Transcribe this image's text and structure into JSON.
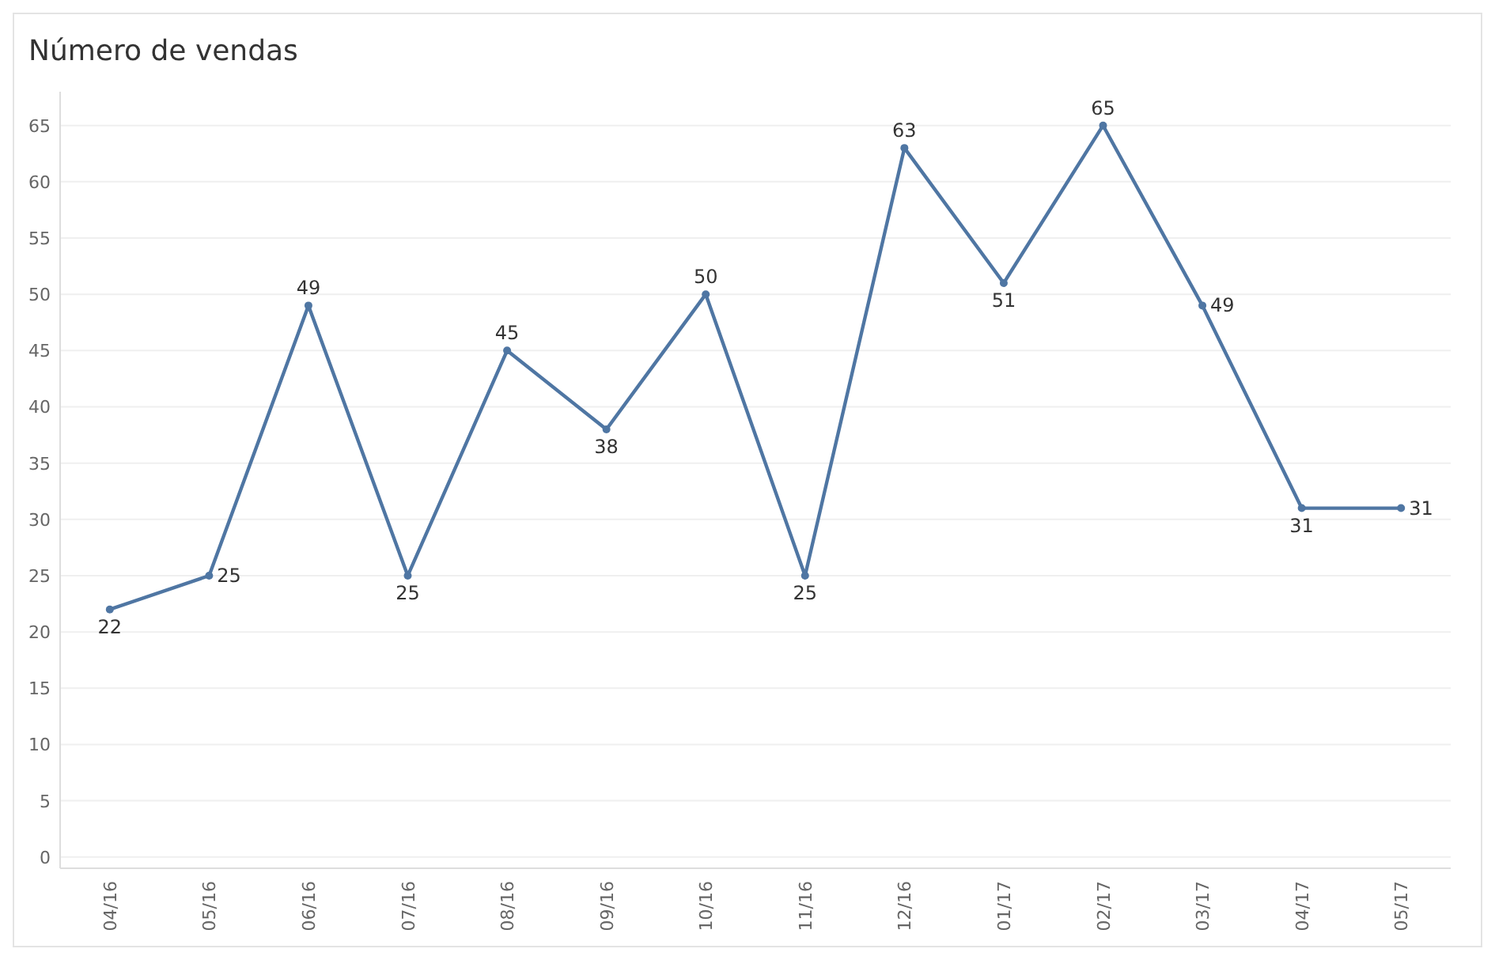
{
  "chart_data": {
    "type": "line",
    "title": "Número de vendas",
    "categories": [
      "04/16",
      "05/16",
      "06/16",
      "07/16",
      "08/16",
      "09/16",
      "10/16",
      "11/16",
      "12/16",
      "01/17",
      "02/17",
      "03/17",
      "04/17",
      "05/17"
    ],
    "series": [
      {
        "color": "#4f76a3",
        "values": [
          22,
          25,
          49,
          25,
          45,
          38,
          50,
          25,
          63,
          51,
          65,
          49,
          31,
          31
        ]
      }
    ],
    "ylim": [
      -1,
      68
    ],
    "yticks": [
      0,
      5,
      10,
      15,
      20,
      25,
      30,
      35,
      40,
      45,
      50,
      55,
      60,
      65
    ],
    "grid": "y",
    "marker": "circle",
    "line_style": "solid",
    "data_labels": true
  }
}
